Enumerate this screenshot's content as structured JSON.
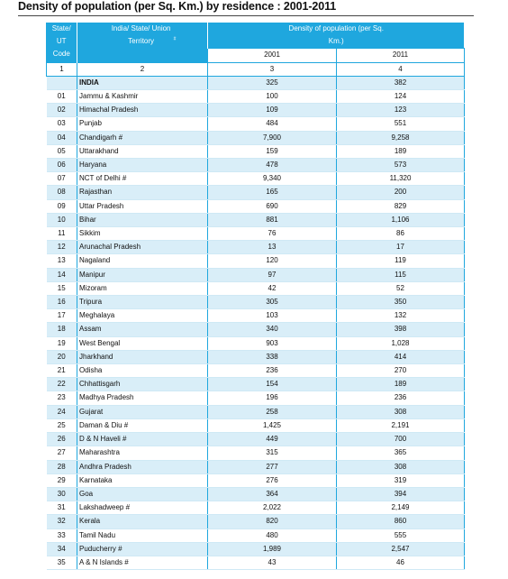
{
  "title": "Density of population (per Sq. Km.) by residence : 2001-2011",
  "header": {
    "code_label": "State/ UT Code",
    "name_label": "India/ State/ Union Territory",
    "name_mark": "#",
    "density_label": "Density of population (per Sq. Km.)",
    "year1": "2001",
    "year2": "2011",
    "col_nums": [
      "1",
      "2",
      "3",
      "4"
    ]
  },
  "rows": [
    {
      "code": "",
      "name": "INDIA",
      "d2001": "325",
      "d2011": "382"
    },
    {
      "code": "01",
      "name": "Jammu & Kashmir",
      "d2001": "100",
      "d2011": "124"
    },
    {
      "code": "02",
      "name": "Himachal Pradesh",
      "d2001": "109",
      "d2011": "123"
    },
    {
      "code": "03",
      "name": "Punjab",
      "d2001": "484",
      "d2011": "551"
    },
    {
      "code": "04",
      "name": "Chandigarh #",
      "d2001": "7,900",
      "d2011": "9,258"
    },
    {
      "code": "05",
      "name": "Uttarakhand",
      "d2001": "159",
      "d2011": "189"
    },
    {
      "code": "06",
      "name": "Haryana",
      "d2001": "478",
      "d2011": "573"
    },
    {
      "code": "07",
      "name": "NCT of Delhi #",
      "d2001": "9,340",
      "d2011": "11,320"
    },
    {
      "code": "08",
      "name": "Rajasthan",
      "d2001": "165",
      "d2011": "200"
    },
    {
      "code": "09",
      "name": "Uttar Pradesh",
      "d2001": "690",
      "d2011": "829"
    },
    {
      "code": "10",
      "name": "Bihar",
      "d2001": "881",
      "d2011": "1,106"
    },
    {
      "code": "11",
      "name": "Sikkim",
      "d2001": "76",
      "d2011": "86"
    },
    {
      "code": "12",
      "name": "Arunachal Pradesh",
      "d2001": "13",
      "d2011": "17"
    },
    {
      "code": "13",
      "name": "Nagaland",
      "d2001": "120",
      "d2011": "119"
    },
    {
      "code": "14",
      "name": "Manipur",
      "d2001": "97",
      "d2011": "115"
    },
    {
      "code": "15",
      "name": "Mizoram",
      "d2001": "42",
      "d2011": "52"
    },
    {
      "code": "16",
      "name": "Tripura",
      "d2001": "305",
      "d2011": "350"
    },
    {
      "code": "17",
      "name": "Meghalaya",
      "d2001": "103",
      "d2011": "132"
    },
    {
      "code": "18",
      "name": "Assam",
      "d2001": "340",
      "d2011": "398"
    },
    {
      "code": "19",
      "name": "West Bengal",
      "d2001": "903",
      "d2011": "1,028"
    },
    {
      "code": "20",
      "name": "Jharkhand",
      "d2001": "338",
      "d2011": "414"
    },
    {
      "code": "21",
      "name": "Odisha",
      "d2001": "236",
      "d2011": "270"
    },
    {
      "code": "22",
      "name": "Chhattisgarh",
      "d2001": "154",
      "d2011": "189"
    },
    {
      "code": "23",
      "name": "Madhya Pradesh",
      "d2001": "196",
      "d2011": "236"
    },
    {
      "code": "24",
      "name": "Gujarat",
      "d2001": "258",
      "d2011": "308"
    },
    {
      "code": "25",
      "name": "Daman & Diu #",
      "d2001": "1,425",
      "d2011": "2,191"
    },
    {
      "code": "26",
      "name": "D & N Haveli #",
      "d2001": "449",
      "d2011": "700"
    },
    {
      "code": "27",
      "name": "Maharashtra",
      "d2001": "315",
      "d2011": "365"
    },
    {
      "code": "28",
      "name": "Andhra Pradesh",
      "d2001": "277",
      "d2011": "308"
    },
    {
      "code": "29",
      "name": "Karnataka",
      "d2001": "276",
      "d2011": "319"
    },
    {
      "code": "30",
      "name": "Goa",
      "d2001": "364",
      "d2011": "394"
    },
    {
      "code": "31",
      "name": "Lakshadweep #",
      "d2001": "2,022",
      "d2011": "2,149"
    },
    {
      "code": "32",
      "name": "Kerala",
      "d2001": "820",
      "d2011": "860"
    },
    {
      "code": "33",
      "name": "Tamil Nadu",
      "d2001": "480",
      "d2011": "555"
    },
    {
      "code": "34",
      "name": "Puducherry #",
      "d2001": "1,989",
      "d2011": "2,547"
    },
    {
      "code": "35",
      "name": "A & N Islands #",
      "d2001": "43",
      "d2011": "46"
    }
  ],
  "colors": {
    "header_blue": "#1fa7de",
    "row_alt": "#d9eef8"
  }
}
